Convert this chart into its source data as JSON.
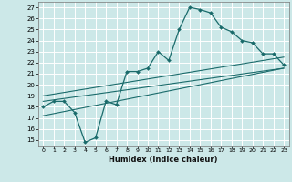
{
  "xlabel": "Humidex (Indice chaleur)",
  "background_color": "#cce8e8",
  "line_color": "#1a6b6b",
  "xlim": [
    -0.5,
    23.5
  ],
  "ylim": [
    14.5,
    27.5
  ],
  "xticks": [
    0,
    1,
    2,
    3,
    4,
    5,
    6,
    7,
    8,
    9,
    10,
    11,
    12,
    13,
    14,
    15,
    16,
    17,
    18,
    19,
    20,
    21,
    22,
    23
  ],
  "yticks": [
    15,
    16,
    17,
    18,
    19,
    20,
    21,
    22,
    23,
    24,
    25,
    26,
    27
  ],
  "main_x": [
    0,
    1,
    2,
    3,
    4,
    5,
    6,
    7,
    8,
    9,
    10,
    11,
    12,
    13,
    14,
    15,
    16,
    17,
    18,
    19,
    20,
    21,
    22,
    23
  ],
  "main_y": [
    18.0,
    18.5,
    18.5,
    17.5,
    14.8,
    15.2,
    18.5,
    18.2,
    21.2,
    21.2,
    21.5,
    23.0,
    22.2,
    25.0,
    27.0,
    26.8,
    26.5,
    25.2,
    24.8,
    24.0,
    23.8,
    22.8,
    22.8,
    21.8
  ],
  "trend1_x": [
    0,
    23
  ],
  "trend1_y": [
    18.5,
    21.5
  ],
  "trend2_x": [
    0,
    23
  ],
  "trend2_y": [
    19.0,
    22.5
  ],
  "trend3_x": [
    0,
    23
  ],
  "trend3_y": [
    17.2,
    21.5
  ]
}
